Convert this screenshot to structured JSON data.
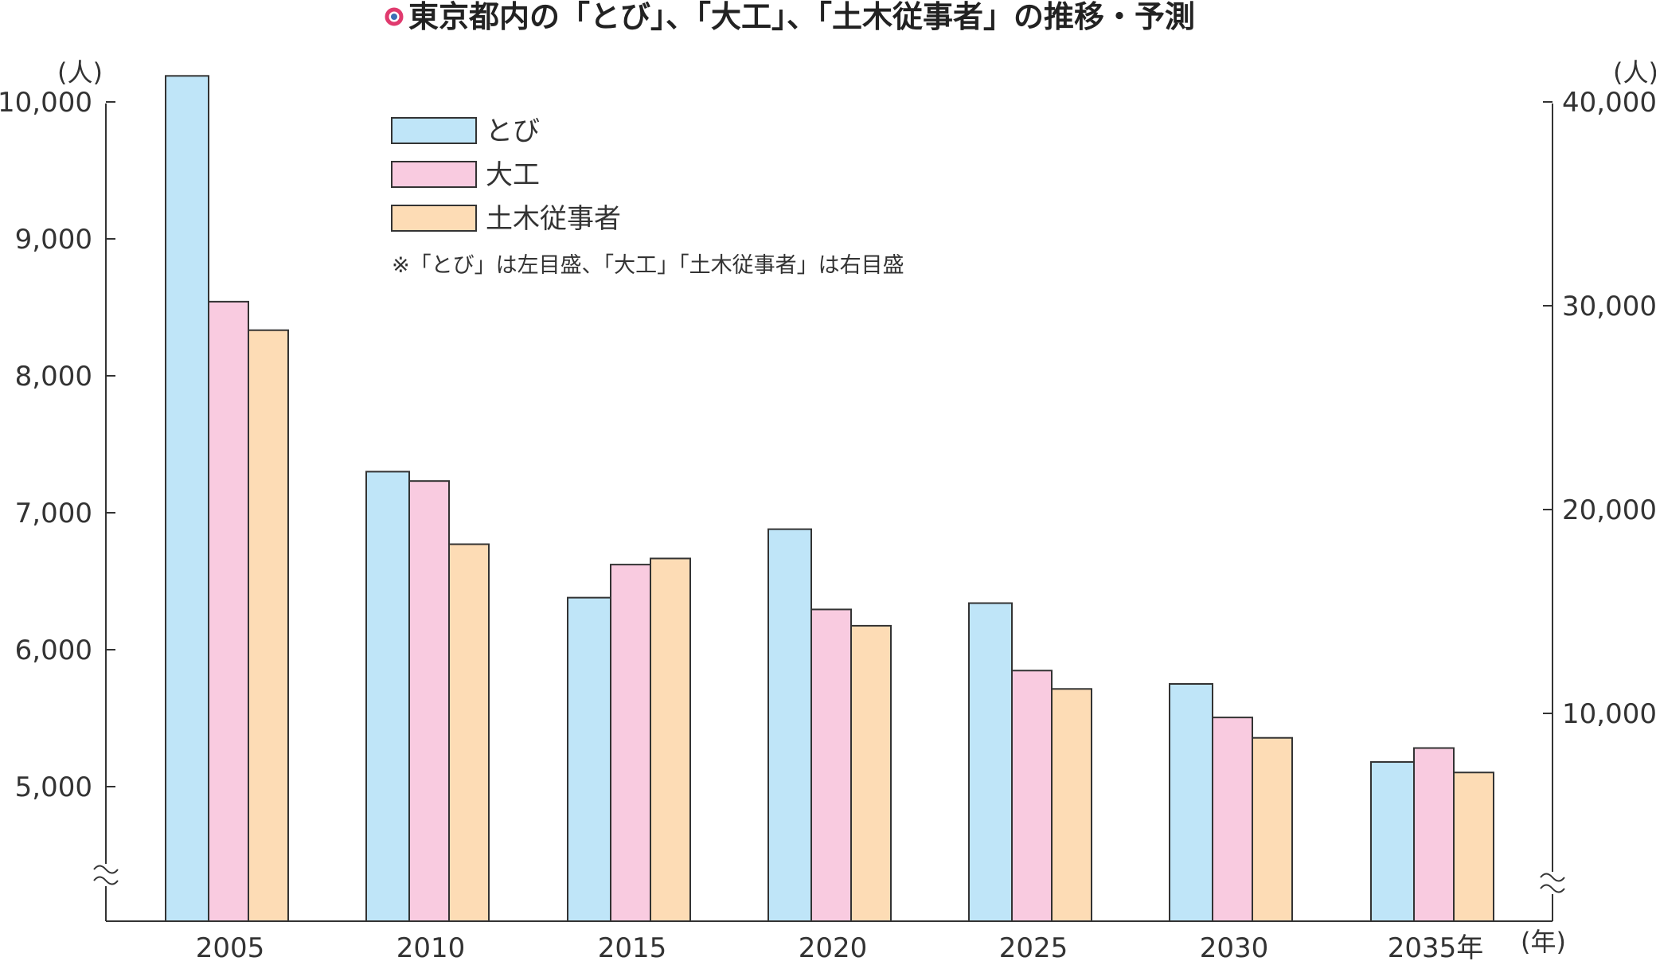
{
  "chart_data": {
    "type": "bar",
    "title": "東京都内の「とび」、「大工」、「土木従事者」の推移・予測",
    "categories": [
      "2005",
      "2010",
      "2015",
      "2020",
      "2025",
      "2030",
      "2035年"
    ],
    "x_unit": "(年)",
    "note": "※「とび」は左目盛、「大工」「土木従事者」は右目盛",
    "left_axis": {
      "unit": "(人)",
      "ylim": [
        4000,
        10000
      ],
      "ticks": [
        "10,000",
        "9,000",
        "8,000",
        "7,000",
        "6,000",
        "5,000"
      ],
      "broken": true
    },
    "right_axis": {
      "unit": "(人)",
      "ylim": [
        0,
        40000
      ],
      "ticks": [
        "40,000",
        "30,000",
        "20,000",
        "10,000"
      ],
      "broken": true
    },
    "series": [
      {
        "name": "とび",
        "axis": "left",
        "color": "#bfe5f8",
        "values": [
          10190,
          7300,
          6380,
          6880,
          6340,
          5750,
          5180
        ]
      },
      {
        "name": "大工",
        "axis": "right",
        "color": "#f9cbe0",
        "values": [
          30200,
          21400,
          17300,
          15100,
          12100,
          9800,
          8300
        ]
      },
      {
        "name": "土木従事者",
        "axis": "right",
        "color": "#fddcb5",
        "values": [
          28800,
          18300,
          17600,
          14300,
          11200,
          8800,
          7100
        ]
      }
    ]
  }
}
